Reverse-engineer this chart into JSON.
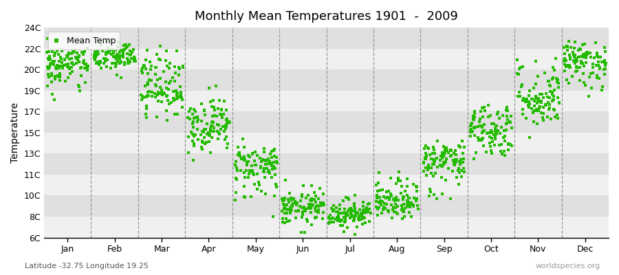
{
  "title": "Monthly Mean Temperatures 1901  -  2009",
  "ylabel": "Temperature",
  "xlabel_months": [
    "Jan",
    "Feb",
    "Mar",
    "Apr",
    "May",
    "Jun",
    "Jul",
    "Aug",
    "Sep",
    "Oct",
    "Nov",
    "Dec"
  ],
  "subtitle": "Latitude -32.75 Longitude 19.25",
  "watermark": "worldspecies.org",
  "ytick_labels": [
    "6C",
    "8C",
    "10C",
    "11C",
    "13C",
    "15C",
    "17C",
    "19C",
    "20C",
    "22C",
    "24C"
  ],
  "ytick_values": [
    6,
    8,
    10,
    11,
    13,
    15,
    17,
    19,
    20,
    22,
    24
  ],
  "ylim": [
    5.5,
    24.8
  ],
  "dot_color": "#22bb00",
  "dot_size": 5,
  "background_color": "#ffffff",
  "band_colors_light": "#f0f0f0",
  "band_colors_dark": "#e0e0e0",
  "legend_label": "Mean Temp",
  "num_years": 109,
  "monthly_means": [
    20.5,
    21.2,
    19.2,
    15.8,
    11.8,
    8.8,
    8.3,
    9.3,
    12.2,
    15.3,
    18.2,
    20.8
  ],
  "monthly_stds": [
    0.9,
    0.75,
    1.1,
    1.3,
    1.1,
    0.8,
    0.7,
    0.75,
    1.1,
    1.3,
    1.3,
    0.9
  ],
  "seed": 42,
  "dashed_line_positions": [
    1,
    2,
    3,
    4,
    5,
    6,
    7,
    8,
    9,
    10,
    11
  ]
}
